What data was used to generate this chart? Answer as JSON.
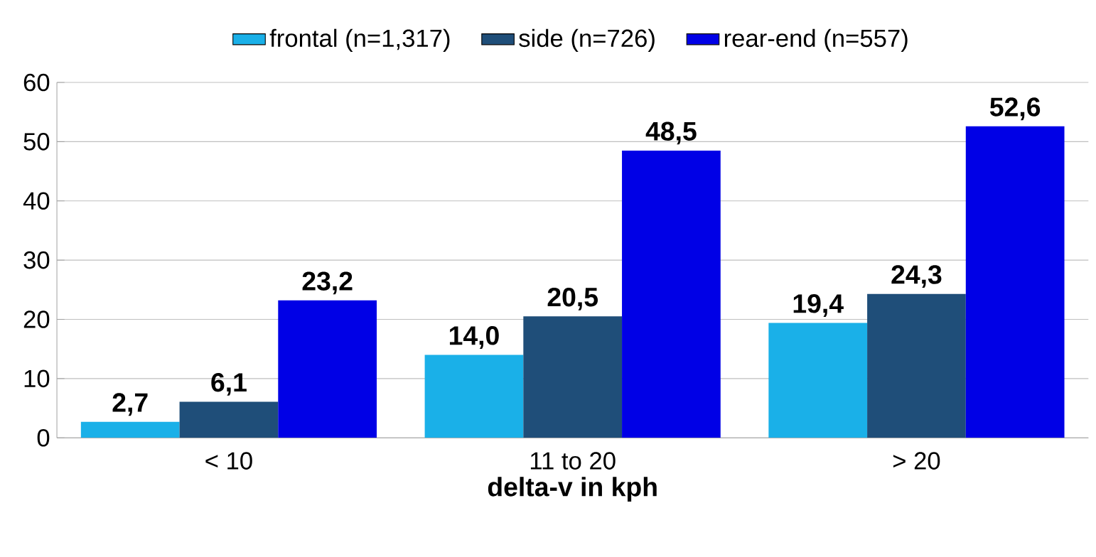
{
  "chart_data": {
    "type": "bar",
    "xlabel": "delta-v in kph",
    "categories": [
      "< 10",
      "11 to 20",
      "> 20"
    ],
    "series": [
      {
        "name": "frontal (n=1,317)",
        "color": "#1ab0e8",
        "values": [
          2.7,
          14.0,
          19.4
        ],
        "value_labels": [
          "2,7",
          "14,0",
          "19,4"
        ]
      },
      {
        "name": "side (n=726)",
        "color": "#1f4e79",
        "values": [
          6.1,
          20.5,
          24.3
        ],
        "value_labels": [
          "6,1",
          "20,5",
          "24,3"
        ]
      },
      {
        "name": "rear-end (n=557)",
        "color": "#0000e6",
        "values": [
          23.2,
          48.5,
          52.6
        ],
        "value_labels": [
          "23,2",
          "48,5",
          "52,6"
        ]
      }
    ],
    "ylim": [
      0,
      60
    ],
    "yticks": [
      0,
      10,
      20,
      30,
      40,
      50,
      60
    ],
    "grid": "y",
    "legend": "top"
  }
}
